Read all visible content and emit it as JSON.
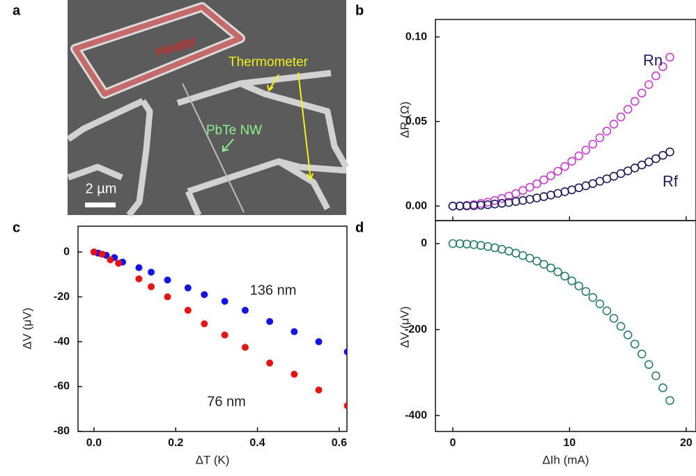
{
  "image_panel": {
    "panel_label": "a",
    "heater": "Heater",
    "thermometer": "Thermometer",
    "nanowire": "PbTe NW",
    "scale_bar": "2 µm"
  },
  "chart_data": [
    {
      "type": "scatter",
      "panel_label": "b",
      "ylabel": "ΔR (Ω)",
      "marker": "open",
      "xlim": [
        -1.49,
        20.84
      ],
      "ylim": [
        -0.0086,
        0.1103
      ],
      "xticks": [
        0,
        10,
        20
      ],
      "yticks": [
        {
          "value": 0,
          "label": "0.00"
        },
        {
          "value": 0.05,
          "label": "0.05"
        },
        {
          "value": 0.1,
          "label": "0.10"
        }
      ],
      "x": [
        0,
        0.6,
        1.2,
        1.8,
        2.4,
        3,
        3.6,
        4.2,
        4.8,
        5.4,
        6,
        6.6,
        7.2,
        7.8,
        8.4,
        9,
        9.6,
        10.2,
        10.8,
        11.4,
        12,
        12.6,
        13.2,
        13.8,
        14.4,
        15,
        15.6,
        16.2,
        16.8,
        17.4,
        18,
        18.6
      ],
      "series": [
        {
          "name": "Rn",
          "color": "#c83ccf",
          "values": [
            0,
            0.0001,
            0.0004,
            0.0008,
            0.0015,
            0.0023,
            0.0033,
            0.0045,
            0.0059,
            0.0074,
            0.0092,
            0.0111,
            0.0132,
            0.0155,
            0.0179,
            0.0206,
            0.0234,
            0.0265,
            0.0297,
            0.0331,
            0.0366,
            0.0404,
            0.0443,
            0.0484,
            0.0527,
            0.0572,
            0.0619,
            0.0668,
            0.0718,
            0.077,
            0.0824,
            0.088
          ]
        },
        {
          "name": "Rf",
          "color": "#1c1c5a",
          "values": [
            0,
            0,
            0.0001,
            0.0003,
            0.0005,
            0.0008,
            0.0012,
            0.0016,
            0.0021,
            0.0027,
            0.0033,
            0.004,
            0.0048,
            0.0056,
            0.0065,
            0.0075,
            0.0085,
            0.0096,
            0.0108,
            0.012,
            0.0133,
            0.0147,
            0.0161,
            0.0176,
            0.0192,
            0.0208,
            0.0225,
            0.0243,
            0.0261,
            0.028,
            0.03,
            0.032
          ]
        }
      ]
    },
    {
      "type": "scatter",
      "panel_label": "c",
      "xlabel": "ΔT (K)",
      "ylabel": "ΔV (μV)",
      "marker": "filled",
      "xlim": [
        -0.039,
        0.619
      ],
      "ylim": [
        -80,
        11.5
      ],
      "xticks": [
        {
          "value": 0,
          "label": "0.0"
        },
        {
          "value": 0.2,
          "label": "0.2"
        },
        {
          "value": 0.4,
          "label": "0.4"
        },
        {
          "value": 0.6,
          "label": "0.6"
        }
      ],
      "yticks": [
        0,
        -20,
        -40,
        -60,
        -80
      ],
      "series": [
        {
          "name": "136 nm",
          "color": "#1414e6",
          "x": [
            0,
            0.01,
            0.03,
            0.05,
            0.07,
            0.11,
            0.14,
            0.18,
            0.23,
            0.27,
            0.32,
            0.37,
            0.43,
            0.49,
            0.55,
            0.62
          ],
          "values": [
            0,
            -0.5,
            -1.5,
            -2.5,
            -4.5,
            -7,
            -9,
            -12.5,
            -16,
            -19,
            -22,
            -26,
            -31,
            -35.5,
            -40,
            -44.5
          ]
        },
        {
          "name": "76 nm",
          "color": "#e61414",
          "x": [
            0,
            0.02,
            0.04,
            0.06,
            0.11,
            0.14,
            0.18,
            0.23,
            0.27,
            0.32,
            0.37,
            0.43,
            0.49,
            0.55,
            0.62
          ],
          "values": [
            0,
            -1,
            -3.5,
            -5,
            -12,
            -15.5,
            -20,
            -26,
            -32,
            -37,
            -42.5,
            -49.5,
            -54.5,
            -61.5,
            -68.5
          ]
        }
      ]
    },
    {
      "type": "scatter",
      "panel_label": "d",
      "xlabel": "ΔIh (mA)",
      "ylabel": "ΔV (μV)",
      "marker": "open",
      "xlim": [
        -1.49,
        20.84
      ],
      "ylim": [
        -437,
        53.4
      ],
      "xticks": [
        0,
        10,
        20
      ],
      "yticks": [
        0,
        -200,
        -400
      ],
      "x": [
        0,
        0.6,
        1.2,
        1.8,
        2.4,
        3,
        3.6,
        4.2,
        4.8,
        5.4,
        6,
        6.6,
        7.2,
        7.8,
        8.4,
        9,
        9.6,
        10.2,
        10.8,
        11.4,
        12,
        12.6,
        13.2,
        13.8,
        14.4,
        15,
        15.6,
        16.2,
        16.8,
        17.4,
        18,
        18.6
      ],
      "series": [
        {
          "color": "#2a7d6b",
          "values": [
            0,
            -0.3,
            -1.1,
            -2.4,
            -4.3,
            -6.7,
            -9.7,
            -13.3,
            -17.5,
            -22.3,
            -27.8,
            -33.9,
            -40.7,
            -48.3,
            -56.7,
            -65.8,
            -75.8,
            -86.7,
            -98.6,
            -111.4,
            -125.3,
            -140.3,
            -156.5,
            -173.8,
            -192.5,
            -212.5,
            -233.9,
            -256.8,
            -281.3,
            -307.4,
            -335.3,
            -365
          ]
        }
      ]
    }
  ]
}
